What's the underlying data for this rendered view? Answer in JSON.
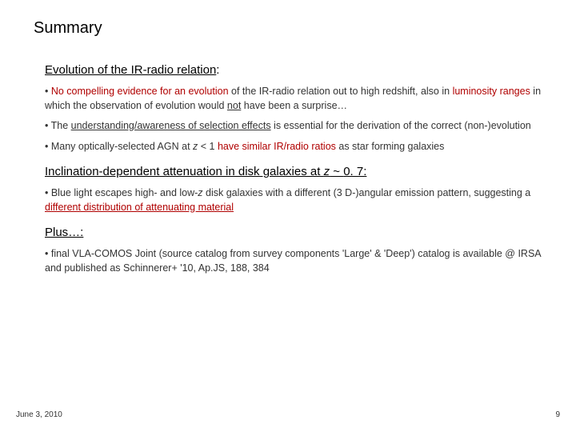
{
  "title": "Summary",
  "section1": {
    "heading_pre": "Evolution of the IR-radio relation",
    "heading_colon": ":",
    "b1_pre": "• ",
    "b1_red1": "No compelling evidence for an evolution",
    "b1_mid": " of the IR-radio relation out to high redshift, also in ",
    "b1_red2": "luminosity ranges",
    "b1_mid2": " in which the observation of evolution would ",
    "b1_not": "not",
    "b1_end": " have been a surprise…",
    "b2_pre": "• The ",
    "b2_u": "understanding/awareness of selection effects",
    "b2_end": " is essential for the derivation of the correct (non-)evolution",
    "b3_pre": "•  Many optically-selected AGN at ",
    "b3_z": "z",
    "b3_mid": " < 1 ",
    "b3_red": "have similar IR/radio ratios",
    "b3_end": " as star forming galaxies"
  },
  "section2": {
    "heading_pre": "Inclination-dependent attenuation in disk galaxies at ",
    "heading_z": "z",
    "heading_tilde": " ~ ",
    "heading_end": "0. 7:",
    "b1_pre": "• Blue light escapes high- and low-",
    "b1_z": "z",
    "b1_mid": " disk galaxies with a different (3 D-)angular emission pattern, suggesting a ",
    "b1_red": "different distribution of attenuating material"
  },
  "section3": {
    "heading": "Plus…:",
    "b1": "• final VLA-COMOS Joint (source catalog from survey components 'Large' & 'Deep') catalog is available @ IRSA and published as Schinnerer+ '10, Ap.JS, 188, 384"
  },
  "footer": {
    "date": "June 3, 2010",
    "page": "9"
  },
  "colors": {
    "red": "#b00000",
    "text": "#333333",
    "bg": "#ffffff"
  },
  "typography": {
    "title_fontsize": 20,
    "heading_fontsize": 15,
    "body_fontsize": 12.5,
    "footer_fontsize": 10,
    "font_family": "Arial"
  }
}
